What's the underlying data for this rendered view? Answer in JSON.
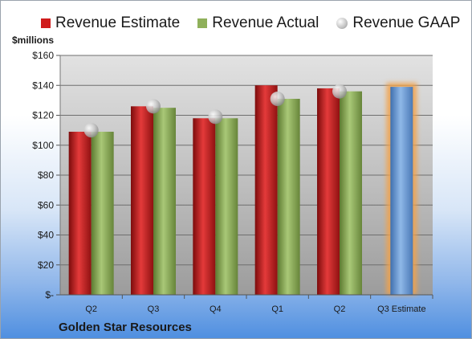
{
  "chart_data": {
    "type": "bar",
    "units_label": "$millions",
    "company": "Golden Star Resources",
    "categories": [
      "Q2",
      "Q3",
      "Q4",
      "Q1",
      "Q2",
      "Q3 Estimate"
    ],
    "series": [
      {
        "name": "Revenue Estimate",
        "type": "bar",
        "color": "#d01c1c",
        "values": [
          109,
          126,
          118,
          140,
          138,
          null
        ]
      },
      {
        "name": "Revenue Actual",
        "type": "bar",
        "color": "#8fb05a",
        "values": [
          109,
          125,
          118,
          131,
          136,
          null
        ]
      },
      {
        "name": "Revenue GAAP",
        "type": "marker",
        "color": "#b0b0b0",
        "values": [
          110,
          126,
          119,
          131,
          136,
          null
        ]
      },
      {
        "name": "Q3 Estimate",
        "type": "bar",
        "color": "#6f9fd8",
        "highlight": "#f3a24a",
        "values": [
          null,
          null,
          null,
          null,
          null,
          139
        ]
      }
    ],
    "ylim": [
      0,
      160
    ],
    "yticks": [
      0,
      20,
      40,
      60,
      80,
      100,
      120,
      140,
      160
    ],
    "ytick_labels": [
      "$-",
      "$20",
      "$40",
      "$60",
      "$80",
      "$100",
      "$120",
      "$140",
      "$160"
    ],
    "grid": true,
    "legend_position": "top"
  }
}
